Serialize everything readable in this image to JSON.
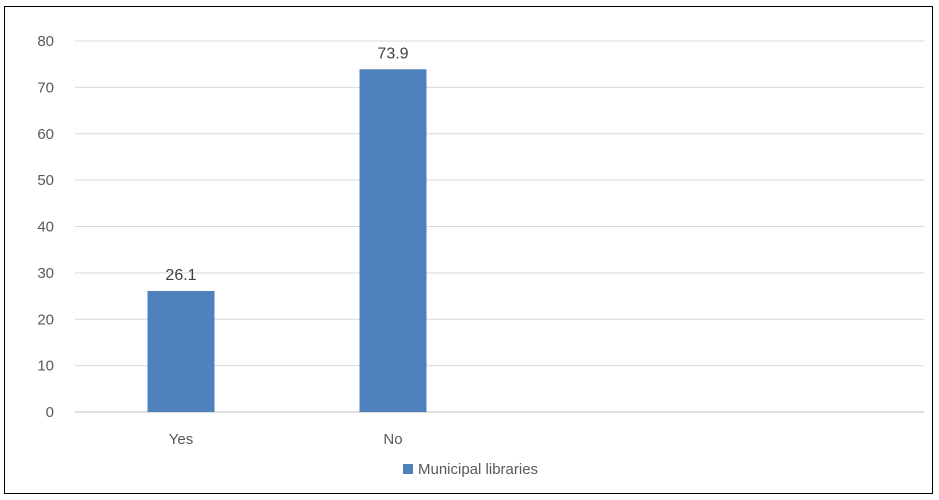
{
  "chart_data": {
    "type": "bar",
    "categories": [
      "Yes",
      "No"
    ],
    "series": [
      {
        "name": "Municipal libraries",
        "values": [
          26.1,
          73.9
        ],
        "color": "#4f81bd"
      }
    ],
    "title": "",
    "xlabel": "",
    "ylabel": "",
    "ylim": [
      0,
      80
    ],
    "yticks": [
      0,
      10,
      20,
      30,
      40,
      50,
      60,
      70,
      80
    ],
    "grid": true,
    "legend": "bottom",
    "data_labels": [
      "26.1",
      "73.9"
    ]
  }
}
